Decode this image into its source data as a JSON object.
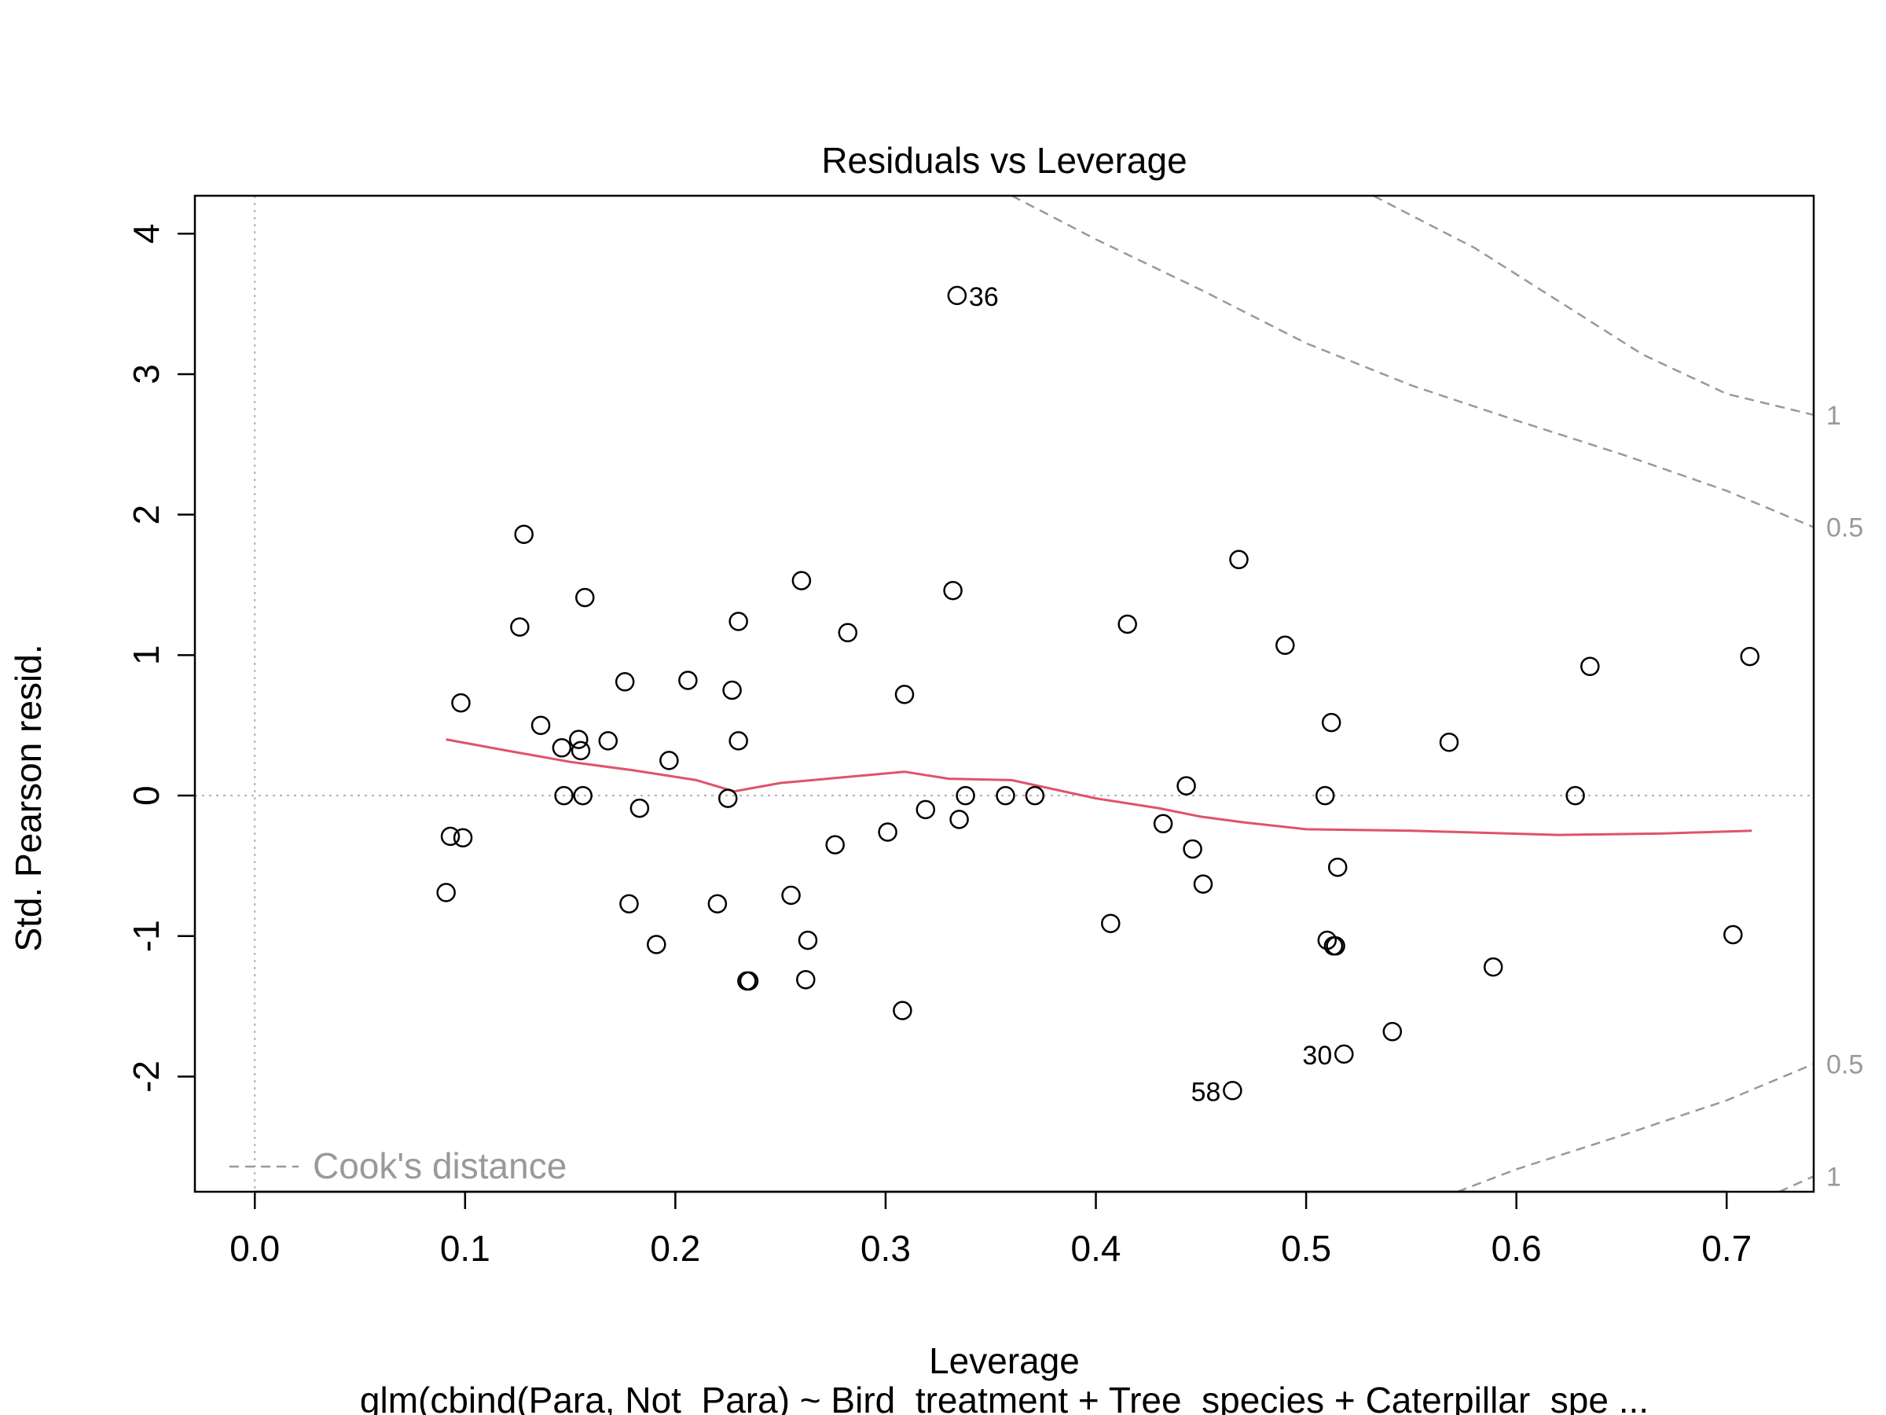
{
  "chart_data": {
    "type": "scatter",
    "title": "Residuals vs Leverage",
    "xlabel": "Leverage",
    "sublabel": "glm(cbind(Para, Not_Para) ~ Bird_treatment + Tree_species + Caterpillar_spe ...",
    "ylabel": "Std. Pearson resid.",
    "xlim": [
      -0.0285,
      0.7414
    ],
    "ylim": [
      -2.82,
      4.27
    ],
    "x_ticks": [
      0.0,
      0.1,
      0.2,
      0.3,
      0.4,
      0.5,
      0.6,
      0.7
    ],
    "x_tick_labels": [
      "0.0",
      "0.1",
      "0.2",
      "0.3",
      "0.4",
      "0.5",
      "0.6",
      "0.7"
    ],
    "y_ticks": [
      -2,
      -1,
      0,
      1,
      2,
      3,
      4
    ],
    "y_tick_labels": [
      "-2",
      "-1",
      "0",
      "1",
      "2",
      "3",
      "4"
    ],
    "grid": false,
    "reference_lines": {
      "vertical_x": 0,
      "horizontal_y": 0,
      "color": "#b3b3b3"
    },
    "legend": {
      "position": "bottom-left",
      "label": "Cook's distance",
      "color": "#999999"
    },
    "points": {
      "x": [
        0.334,
        0.128,
        0.126,
        0.157,
        0.098,
        0.091,
        0.093,
        0.099,
        0.136,
        0.146,
        0.154,
        0.155,
        0.168,
        0.147,
        0.156,
        0.176,
        0.178,
        0.183,
        0.191,
        0.197,
        0.206,
        0.22,
        0.225,
        0.227,
        0.23,
        0.23,
        0.234,
        0.235,
        0.255,
        0.26,
        0.262,
        0.263,
        0.276,
        0.282,
        0.301,
        0.308,
        0.309,
        0.319,
        0.332,
        0.335,
        0.338,
        0.357,
        0.371,
        0.407,
        0.415,
        0.432,
        0.443,
        0.446,
        0.451,
        0.465,
        0.468,
        0.49,
        0.509,
        0.51,
        0.512,
        0.513,
        0.514,
        0.515,
        0.518,
        0.541,
        0.568,
        0.589,
        0.628,
        0.635,
        0.703,
        0.711
      ],
      "y": [
        3.56,
        1.86,
        1.2,
        1.41,
        0.66,
        -0.69,
        -0.29,
        -0.3,
        0.5,
        0.34,
        0.4,
        0.32,
        0.39,
        0.0,
        0.0,
        0.81,
        -0.77,
        -0.09,
        -1.06,
        0.25,
        0.82,
        -0.77,
        -0.02,
        0.75,
        1.24,
        0.39,
        -1.32,
        -1.32,
        -0.71,
        1.53,
        -1.31,
        -1.03,
        -0.35,
        1.16,
        -0.26,
        -1.53,
        0.72,
        -0.1,
        1.46,
        -0.17,
        0.0,
        0.0,
        0.0,
        -0.91,
        1.22,
        -0.2,
        0.07,
        -0.38,
        -0.63,
        -2.1,
        1.68,
        1.07,
        0.0,
        -1.03,
        0.52,
        -1.07,
        -1.07,
        -0.51,
        -1.84,
        -1.68,
        0.38,
        -1.22,
        0.0,
        0.92,
        -0.99,
        0.99
      ]
    },
    "labeled_points": [
      {
        "label": "36",
        "x": 0.334,
        "y": 3.56,
        "side": "right"
      },
      {
        "label": "30",
        "x": 0.518,
        "y": -1.84,
        "side": "left"
      },
      {
        "label": "58",
        "x": 0.465,
        "y": -2.1,
        "side": "left"
      }
    ],
    "smoother": {
      "color": "#df536b",
      "x": [
        0.091,
        0.12,
        0.15,
        0.18,
        0.21,
        0.228,
        0.25,
        0.28,
        0.309,
        0.33,
        0.36,
        0.4,
        0.43,
        0.45,
        0.47,
        0.5,
        0.55,
        0.62,
        0.67,
        0.712
      ],
      "y": [
        0.4,
        0.32,
        0.24,
        0.18,
        0.11,
        0.03,
        0.09,
        0.13,
        0.17,
        0.12,
        0.11,
        -0.02,
        -0.09,
        -0.15,
        -0.19,
        -0.24,
        -0.25,
        -0.28,
        -0.27,
        -0.25
      ]
    },
    "cooks_curves": [
      {
        "label": "0.5",
        "x": [
          0.36,
          0.4,
          0.45,
          0.5,
          0.55,
          0.6,
          0.65,
          0.7,
          0.7414
        ],
        "y": [
          4.27,
          3.96,
          3.6,
          3.22,
          2.92,
          2.67,
          2.43,
          2.17,
          1.91
        ]
      },
      {
        "label": "1",
        "x": [
          0.532,
          0.55,
          0.58,
          0.62,
          0.66,
          0.7,
          0.7414
        ],
        "y": [
          4.27,
          4.13,
          3.9,
          3.52,
          3.14,
          2.86,
          2.71
        ]
      },
      {
        "label": "0.5",
        "x": [
          0.572,
          0.6,
          0.65,
          0.7,
          0.7414
        ],
        "y": [
          -2.82,
          -2.66,
          -2.42,
          -2.17,
          -1.91
        ]
      },
      {
        "label": "1",
        "x": [
          0.725,
          0.7414
        ],
        "y": [
          -2.82,
          -2.71
        ]
      }
    ]
  }
}
